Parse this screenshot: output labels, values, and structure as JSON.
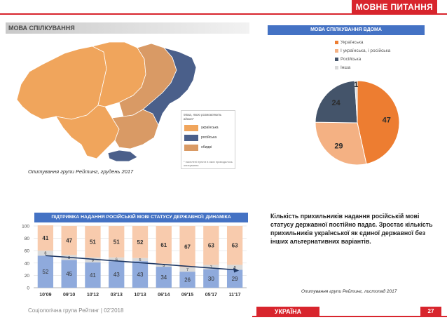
{
  "header": {
    "title": "МОВНЕ ПИТАННЯ"
  },
  "map_section": {
    "title": "МОВА СПІЛКУВАННЯ",
    "legend_title": "Мова, якою розмовляють вдома*",
    "legend": [
      {
        "label": "українська",
        "color": "#f0a55c"
      },
      {
        "label": "російська",
        "color": "#4a5f8a"
      },
      {
        "label": "обидві",
        "color": "#d99a65"
      }
    ],
    "legend_note": "* населені пункти в яких проводилось опитування",
    "note": "Опитування групи Рейтинг, грудень 2017"
  },
  "chart_data": [
    {
      "type": "pie",
      "title": "МОВА СПІЛКУВАННЯ ВДОМА",
      "slices": [
        {
          "label": "Українська",
          "value": 47,
          "color": "#ed7d31"
        },
        {
          "label": "І українська, і російська",
          "value": 29,
          "color": "#f4b183"
        },
        {
          "label": "Російська",
          "value": 24,
          "color": "#44546a"
        },
        {
          "label": "Інша",
          "value": 1,
          "color": "#d9d9d9"
        }
      ]
    },
    {
      "type": "bar",
      "stacked": true,
      "title": "ПІДТРИМКА НАДАННЯ РОСІЙСЬКІЙ МОВІ СТАТУСУ ДЕРЖАВНОЇ: ДИНАМІКА",
      "categories": [
        "10'09",
        "09'10",
        "10'12",
        "03'13",
        "10'13",
        "06'14",
        "09'15",
        "05'17",
        "11'17"
      ],
      "ylim": [
        0,
        100
      ],
      "yticks": [
        0,
        20,
        40,
        60,
        80,
        100
      ],
      "series": [
        {
          "values": [
            52,
            45,
            41,
            43,
            43,
            34,
            26,
            30,
            29
          ],
          "color": "#8faadc"
        },
        {
          "values": [
            8,
            8,
            8,
            6,
            5,
            5,
            7,
            7,
            8
          ],
          "color": "#d9d9d9"
        },
        {
          "values": [
            41,
            47,
            51,
            51,
            52,
            61,
            67,
            63,
            63
          ],
          "color": "#f8cbad"
        }
      ],
      "trend": {
        "from": 52,
        "to": 29,
        "color": "#1f3864"
      }
    }
  ],
  "text": {
    "body": "Кількість прихильників надання російській мові статусу державної постійно падає. Зростає кількість прихильників української як єдиної державної без інших альтернативних варіантів.",
    "note": "Опитування групи Рейтинг, листопад 2017"
  },
  "footer": {
    "org": "Соціологічна група Рейтинг | 02'2018",
    "badge": "УКРАЇНА",
    "page": "27"
  }
}
